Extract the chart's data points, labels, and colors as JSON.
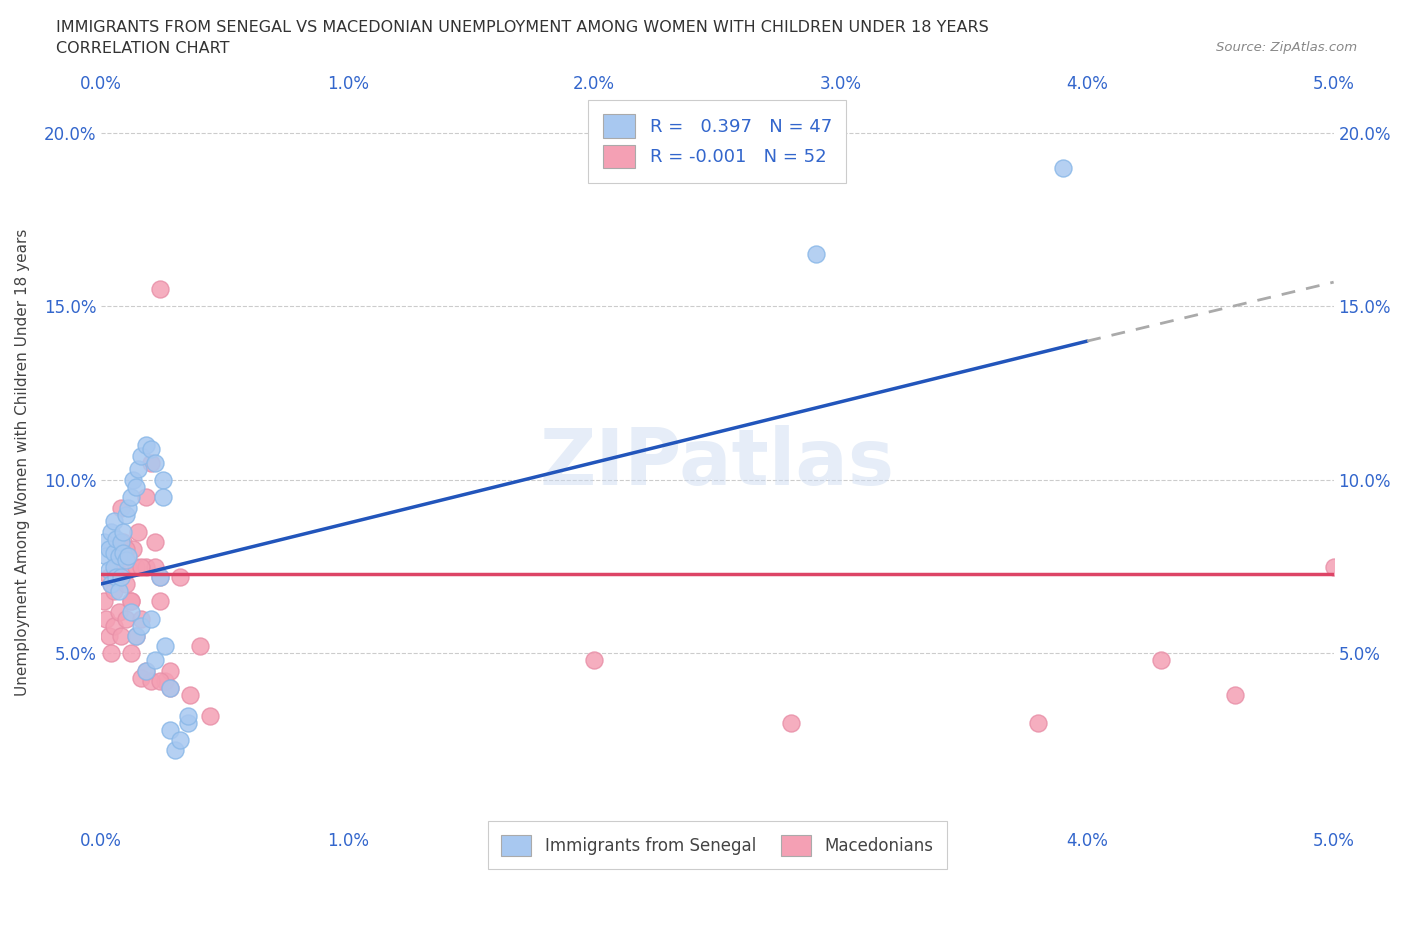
{
  "title_line1": "IMMIGRANTS FROM SENEGAL VS MACEDONIAN UNEMPLOYMENT AMONG WOMEN WITH CHILDREN UNDER 18 YEARS",
  "title_line2": "CORRELATION CHART",
  "source_text": "Source: ZipAtlas.com",
  "ylabel": "Unemployment Among Women with Children Under 18 years",
  "xlim": [
    0.0,
    0.05
  ],
  "ylim": [
    0.0,
    0.21
  ],
  "x_ticks": [
    0.0,
    0.01,
    0.02,
    0.03,
    0.04,
    0.05
  ],
  "x_tick_labels": [
    "0.0%",
    "1.0%",
    "2.0%",
    "3.0%",
    "4.0%",
    "5.0%"
  ],
  "y_ticks": [
    0.05,
    0.1,
    0.15,
    0.2
  ],
  "y_tick_labels": [
    "5.0%",
    "10.0%",
    "15.0%",
    "20.0%"
  ],
  "blue_color": "#a8c8f0",
  "pink_color": "#f4a0b4",
  "trendline_blue": "#2255bb",
  "trendline_pink": "#dd4466",
  "trendline_dashed_color": "#aaaaaa",
  "legend_R_blue": "0.397",
  "legend_N_blue": "47",
  "legend_R_pink": "-0.001",
  "legend_N_pink": "52",
  "legend_label_blue": "Immigrants from Senegal",
  "legend_label_pink": "Macedonians",
  "watermark": "ZIPatlas",
  "trendline_blue_x0": 0.0,
  "trendline_blue_y0": 0.07,
  "trendline_blue_x1": 0.04,
  "trendline_blue_y1": 0.14,
  "trendline_blue_x2": 0.05,
  "trendline_blue_y2": 0.157,
  "trendline_pink_x0": 0.0,
  "trendline_pink_y0": 0.073,
  "trendline_pink_x1": 0.05,
  "trendline_pink_y1": 0.073,
  "senegal_x": [
    0.0001,
    0.0002,
    0.0003,
    0.0003,
    0.0004,
    0.0004,
    0.0005,
    0.0005,
    0.0005,
    0.0006,
    0.0006,
    0.0007,
    0.0007,
    0.0008,
    0.0008,
    0.0009,
    0.0009,
    0.001,
    0.001,
    0.0011,
    0.0011,
    0.0012,
    0.0013,
    0.0014,
    0.0015,
    0.0016,
    0.0018,
    0.002,
    0.0022,
    0.0025,
    0.0012,
    0.0014,
    0.0016,
    0.0018,
    0.002,
    0.0022,
    0.0024,
    0.0026,
    0.0028,
    0.003,
    0.0032,
    0.0035,
    0.0025,
    0.0028,
    0.0035,
    0.039,
    0.029
  ],
  "senegal_y": [
    0.082,
    0.078,
    0.08,
    0.074,
    0.085,
    0.07,
    0.079,
    0.088,
    0.075,
    0.083,
    0.072,
    0.078,
    0.068,
    0.082,
    0.072,
    0.085,
    0.079,
    0.09,
    0.077,
    0.092,
    0.078,
    0.095,
    0.1,
    0.098,
    0.103,
    0.107,
    0.11,
    0.109,
    0.105,
    0.1,
    0.062,
    0.055,
    0.058,
    0.045,
    0.06,
    0.048,
    0.072,
    0.052,
    0.028,
    0.022,
    0.025,
    0.03,
    0.095,
    0.04,
    0.032,
    0.19,
    0.165
  ],
  "macedonian_x": [
    0.0001,
    0.0002,
    0.0003,
    0.0003,
    0.0004,
    0.0004,
    0.0005,
    0.0005,
    0.0006,
    0.0007,
    0.0007,
    0.0008,
    0.0009,
    0.001,
    0.001,
    0.0011,
    0.0012,
    0.0013,
    0.0014,
    0.0015,
    0.0016,
    0.0018,
    0.002,
    0.0022,
    0.0024,
    0.0008,
    0.001,
    0.0012,
    0.0014,
    0.0016,
    0.0018,
    0.0022,
    0.0024,
    0.0026,
    0.0028,
    0.0012,
    0.0016,
    0.002,
    0.0024,
    0.0028,
    0.0032,
    0.0036,
    0.004,
    0.0044,
    0.0018,
    0.02,
    0.028,
    0.038,
    0.043,
    0.046,
    0.0024,
    0.05
  ],
  "macedonian_y": [
    0.065,
    0.06,
    0.072,
    0.055,
    0.07,
    0.05,
    0.068,
    0.058,
    0.075,
    0.062,
    0.078,
    0.055,
    0.082,
    0.07,
    0.06,
    0.075,
    0.065,
    0.08,
    0.055,
    0.085,
    0.06,
    0.095,
    0.105,
    0.082,
    0.072,
    0.092,
    0.08,
    0.05,
    0.075,
    0.043,
    0.075,
    0.075,
    0.065,
    0.042,
    0.045,
    0.065,
    0.075,
    0.042,
    0.042,
    0.04,
    0.072,
    0.038,
    0.052,
    0.032,
    0.045,
    0.048,
    0.03,
    0.03,
    0.048,
    0.038,
    0.155,
    0.075
  ]
}
